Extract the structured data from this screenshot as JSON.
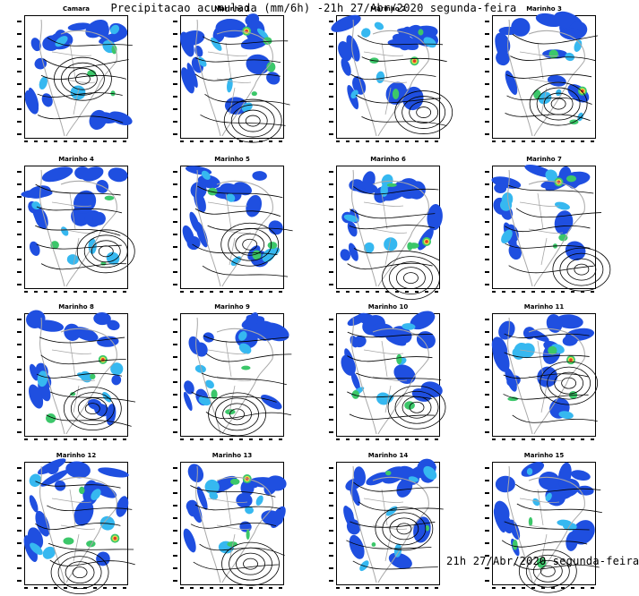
{
  "title": "Precipitacao acumulada (mm/6h) -21h 27/Abr/2020 segunda-feira",
  "footer": "21h 27/Abr/2020 segunda-feira",
  "colors": {
    "blue": "#1f4fe0",
    "cyan": "#36b8f0",
    "green": "#3cc76a",
    "yellow": "#e8e04a",
    "red": "#e03a2a",
    "coast": "#a8a8a8",
    "isobar": "#000000"
  },
  "panels": [
    {
      "label": "Camara"
    },
    {
      "label": "Marinho 1"
    },
    {
      "label": "Marinho 2"
    },
    {
      "label": "Marinho 3"
    },
    {
      "label": "Marinho 4"
    },
    {
      "label": "Marinho 5"
    },
    {
      "label": "Marinho 6"
    },
    {
      "label": "Marinho 7"
    },
    {
      "label": "Marinho 8"
    },
    {
      "label": "Marinho 9"
    },
    {
      "label": "Marinho 10"
    },
    {
      "label": "Marinho 11"
    },
    {
      "label": "Marinho 12"
    },
    {
      "label": "Marinho 13"
    },
    {
      "label": "Marinho 14"
    },
    {
      "label": "Marinho 15"
    }
  ]
}
